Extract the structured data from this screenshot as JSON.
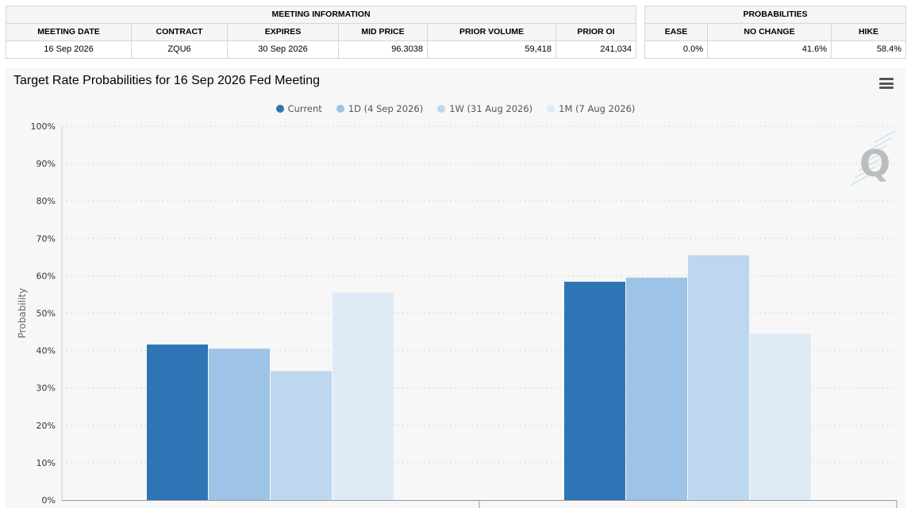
{
  "meeting_info": {
    "heading": "MEETING INFORMATION",
    "columns": [
      "MEETING DATE",
      "CONTRACT",
      "EXPIRES",
      "MID PRICE",
      "PRIOR VOLUME",
      "PRIOR OI"
    ],
    "row": [
      "16 Sep 2026",
      "ZQU6",
      "30 Sep 2026",
      "96.3038",
      "59,418",
      "241,034"
    ]
  },
  "probabilities": {
    "heading": "PROBABILITIES",
    "columns": [
      "EASE",
      "NO CHANGE",
      "HIKE"
    ],
    "row": [
      "0.0%",
      "41.6%",
      "58.4%"
    ]
  },
  "chart": {
    "title": "Target Rate Probabilities for 16 Sep 2026 Fed Meeting",
    "menu_icon": "hamburger-menu-icon",
    "watermark_text": "Q"
  },
  "chart_data": {
    "type": "bar",
    "title": "Target Rate Probabilities for 16 Sep 2026 Fed Meeting",
    "xlabel": "",
    "ylabel": "Probability",
    "ylim": [
      0,
      100
    ],
    "yticks": [
      "0%",
      "10%",
      "20%",
      "30%",
      "40%",
      "50%",
      "60%",
      "70%",
      "80%",
      "90%",
      "100%"
    ],
    "categories": [
      "",
      ""
    ],
    "grid": true,
    "legend_position": "top-center",
    "series": [
      {
        "name": "Current",
        "color": "#2e75b6",
        "values": [
          41.6,
          58.4
        ]
      },
      {
        "name": "1D (4 Sep 2026)",
        "color": "#9dc3e6",
        "values": [
          40.5,
          59.5
        ]
      },
      {
        "name": "1W (31 Aug 2026)",
        "color": "#bdd7ee",
        "values": [
          34.5,
          65.5
        ]
      },
      {
        "name": "1M (7 Aug 2026)",
        "color": "#deebf7",
        "values": [
          55.5,
          44.5
        ]
      }
    ]
  }
}
